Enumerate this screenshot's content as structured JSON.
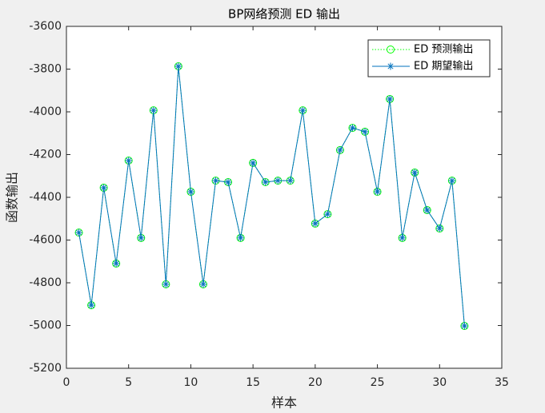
{
  "chart_data": {
    "type": "line",
    "title": "BP网络预测 ED 输出",
    "x_label": "样本",
    "y_label": "函数输出",
    "x": [
      1,
      2,
      3,
      4,
      5,
      6,
      7,
      8,
      9,
      10,
      11,
      12,
      13,
      14,
      15,
      16,
      17,
      18,
      19,
      20,
      21,
      22,
      23,
      24,
      25,
      26,
      27,
      28,
      29,
      30,
      31,
      32
    ],
    "series": [
      {
        "name": "ED 预测输出",
        "color": "#00ff00",
        "line_style": "dotted",
        "marker": "circle",
        "values": [
          -4565,
          -4905,
          -4355,
          -4710,
          -4228,
          -4590,
          -3993,
          -4807,
          -3787,
          -4374,
          -4807,
          -4322,
          -4329,
          -4590,
          -4239,
          -4329,
          -4322,
          -4322,
          -3993,
          -4523,
          -4479,
          -4179,
          -4075,
          -4093,
          -4374,
          -3940,
          -4590,
          -4284,
          -4460,
          -4546,
          -4322,
          -5002
        ]
      },
      {
        "name": "ED 期望输出",
        "color": "#0072bd",
        "line_style": "solid",
        "marker": "asterisk",
        "values": [
          -4565,
          -4905,
          -4355,
          -4710,
          -4228,
          -4590,
          -3993,
          -4807,
          -3787,
          -4374,
          -4807,
          -4322,
          -4329,
          -4590,
          -4239,
          -4329,
          -4322,
          -4322,
          -3993,
          -4523,
          -4479,
          -4179,
          -4075,
          -4093,
          -4374,
          -3940,
          -4590,
          -4284,
          -4460,
          -4546,
          -4322,
          -5002
        ]
      }
    ],
    "xlim": [
      0,
      35
    ],
    "xticks": [
      0,
      5,
      10,
      15,
      20,
      25,
      30,
      35
    ],
    "ylim": [
      -5200,
      -3600
    ],
    "yticks": [
      -5200,
      -5000,
      -4800,
      -4600,
      -4400,
      -4200,
      -4000,
      -3800,
      -3600
    ],
    "legend": "upper right"
  }
}
